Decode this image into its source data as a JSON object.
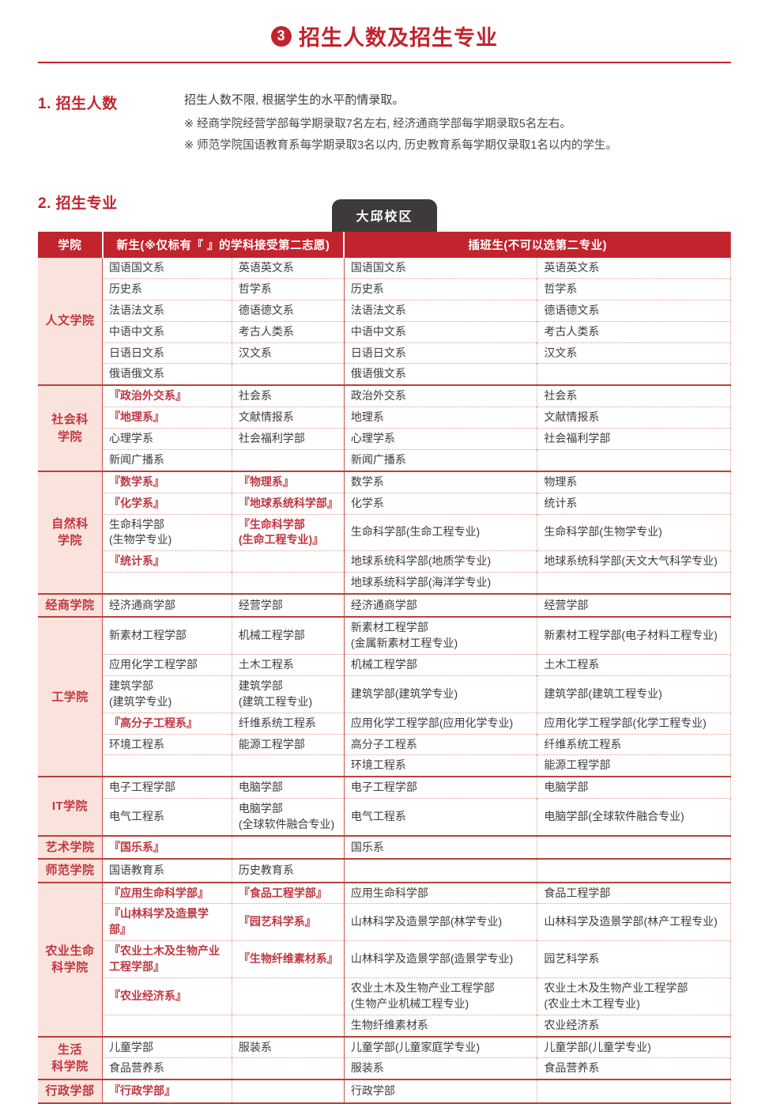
{
  "page": {
    "title": "招生人数及招生专业",
    "title_badge": "3"
  },
  "section1": {
    "heading": "1. 招生人数",
    "lead": "招生人数不限, 根据学生的水平酌情录取。",
    "note1": "※ 经商学院经营学部每学期录取7名左右, 经济通商学部每学期录取5名左右。",
    "note2": "※ 师范学院国语教育系每学期录取3名以内, 历史教育系每学期仅录取1名以内的学生。"
  },
  "section2": {
    "heading": "2. 招生专业",
    "campus_tab": "大邱校区"
  },
  "table": {
    "headers": {
      "college": "学院",
      "freshmen": "新生(※仅标有『 』的学科接受第二志愿)",
      "transfer": "插班生(不可以选第二专业)"
    },
    "red_marker_note": "cells wrapped in 『 』 are shown in red",
    "groups": [
      {
        "college": "人文学院",
        "rows": [
          [
            "国语国文系",
            "英语英文系",
            "国语国文系",
            "英语英文系"
          ],
          [
            "历史系",
            "哲学系",
            "历史系",
            "哲学系"
          ],
          [
            "法语法文系",
            "德语德文系",
            "法语法文系",
            "德语德文系"
          ],
          [
            "中语中文系",
            "考古人类系",
            "中语中文系",
            "考古人类系"
          ],
          [
            "日语日文系",
            "汉文系",
            "日语日文系",
            "汉文系"
          ],
          [
            "俄语俄文系",
            "",
            "俄语俄文系",
            ""
          ]
        ]
      },
      {
        "college": "社会科\n学院",
        "rows": [
          [
            "『政治外交系』",
            "社会系",
            "政治外交系",
            "社会系"
          ],
          [
            "『地理系』",
            "文献情报系",
            "地理系",
            "文献情报系"
          ],
          [
            "心理学系",
            "社会福利学部",
            "心理学系",
            "社会福利学部"
          ],
          [
            "新闻广播系",
            "",
            "新闻广播系",
            ""
          ]
        ]
      },
      {
        "college": "自然科\n学院",
        "rows": [
          [
            "『数学系』",
            "『物理系』",
            "数学系",
            "物理系"
          ],
          [
            "『化学系』",
            "『地球系统科学部』",
            "化学系",
            "统计系"
          ],
          [
            "生命科学部\n(生物学专业)",
            "『生命科学部\n(生命工程专业)』",
            "生命科学部(生命工程专业)",
            "生命科学部(生物学专业)"
          ],
          [
            "『统计系』",
            "",
            "地球系统科学部(地质学专业)",
            "地球系统科学部(天文大气科学专业)"
          ],
          [
            "",
            "",
            "地球系统科学部(海洋学专业)",
            ""
          ]
        ]
      },
      {
        "college": "经商学院",
        "rows": [
          [
            "经济通商学部",
            "经营学部",
            "经济通商学部",
            "经营学部"
          ]
        ]
      },
      {
        "college": "工学院",
        "rows": [
          [
            "新素材工程学部",
            "机械工程学部",
            "新素材工程学部\n(金属新素材工程专业)",
            "新素材工程学部(电子材料工程专业)"
          ],
          [
            "应用化学工程学部",
            "土木工程系",
            "机械工程学部",
            "土木工程系"
          ],
          [
            "建筑学部\n(建筑学专业)",
            "建筑学部\n(建筑工程专业)",
            "建筑学部(建筑学专业)",
            "建筑学部(建筑工程专业)"
          ],
          [
            "『高分子工程系』",
            "纤维系统工程系",
            "应用化学工程学部(应用化学专业)",
            "应用化学工程学部(化学工程专业)"
          ],
          [
            "环境工程系",
            "能源工程学部",
            "高分子工程系",
            "纤维系统工程系"
          ],
          [
            "",
            "",
            "环境工程系",
            "能源工程学部"
          ]
        ]
      },
      {
        "college": "IT学院",
        "rows": [
          [
            "电子工程学部",
            "电脑学部",
            "电子工程学部",
            "电脑学部"
          ],
          [
            "电气工程系",
            "电脑学部\n(全球软件融合专业)",
            "电气工程系",
            "电脑学部(全球软件融合专业)"
          ]
        ]
      },
      {
        "college": "艺术学院",
        "rows": [
          [
            "『国乐系』",
            "",
            "国乐系",
            ""
          ]
        ]
      },
      {
        "college": "师范学院",
        "rows": [
          [
            "国语教育系",
            "历史教育系",
            "",
            ""
          ]
        ]
      },
      {
        "college": "农业生命\n科学院",
        "rows": [
          [
            "『应用生命科学部』",
            "『食品工程学部』",
            "应用生命科学部",
            "食品工程学部"
          ],
          [
            "『山林科学及造景学部』",
            "『园艺科学系』",
            "山林科学及造景学部(林学专业)",
            "山林科学及造景学部(林产工程专业)"
          ],
          [
            "『农业土木及生物产业\n工程学部』",
            "『生物纤维素材系』",
            "山林科学及造景学部(造景学专业)",
            "园艺科学系"
          ],
          [
            "『农业经济系』",
            "",
            "农业土木及生物产业工程学部\n(生物产业机械工程专业)",
            "农业土木及生物产业工程学部\n(农业土木工程专业)"
          ],
          [
            "",
            "",
            "生物纤维素材系",
            "农业经济系"
          ]
        ]
      },
      {
        "college": "生活\n科学院",
        "rows": [
          [
            "儿童学部",
            "服装系",
            "儿童学部(儿童家庭学专业)",
            "儿童学部(儿童学专业)"
          ],
          [
            "食品营养系",
            "",
            "服装系",
            "食品营养系"
          ]
        ]
      },
      {
        "college": "行政学部",
        "rows": [
          [
            "『行政学部』",
            "",
            "行政学部",
            ""
          ]
        ]
      }
    ]
  },
  "colors": {
    "accent": "#c2242d",
    "red_text": "#c03640",
    "college_bg": "#fae3dc",
    "tab_bg": "#3d3a39",
    "body_text": "#3c3c3c"
  }
}
